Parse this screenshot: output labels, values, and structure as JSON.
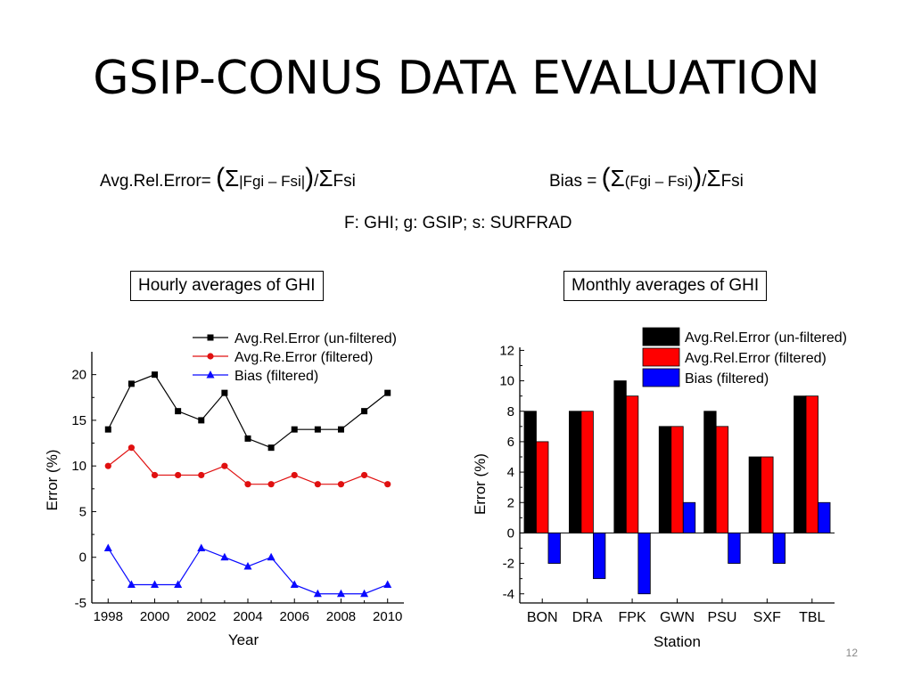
{
  "slide": {
    "title": "GSIP-CONUS DATA EVALUATION",
    "number": "12"
  },
  "formulas": {
    "avg_rel_error": {
      "prefix": "Avg.Rel.Error=",
      "open": "(",
      "sigma1": "Σ",
      "term": "|Fgi – Fsi|",
      "close": ")",
      "slash": "/",
      "sigma2": "Σ",
      "denom": "Fsi"
    },
    "bias": {
      "prefix": "Bias =",
      "open": "(",
      "sigma1": "Σ",
      "term": "(Fgi – Fsi)",
      "close": ")",
      "slash": "/",
      "sigma2": "Σ",
      "denom": "Fsi"
    },
    "legend_note": "F: GHI; g: GSIP; s: SURFRAD"
  },
  "labels": {
    "hourly": "Hourly averages of GHI",
    "monthly": "Monthly averages of GHI"
  },
  "chart_data": [
    {
      "type": "line",
      "xlabel": "Year",
      "ylabel": "Error (%)",
      "xlim": [
        1997.3,
        2010.7
      ],
      "ylim": [
        -5,
        22.5
      ],
      "xticks": [
        1998,
        2000,
        2002,
        2004,
        2006,
        2008,
        2010
      ],
      "yticks": [
        -5,
        0,
        5,
        10,
        15,
        20
      ],
      "x": [
        1998,
        1999,
        2000,
        2001,
        2002,
        2003,
        2004,
        2005,
        2006,
        2007,
        2008,
        2009,
        2010
      ],
      "legend_position": "top",
      "series": [
        {
          "name": "Avg.Rel.Error (un-filtered)",
          "color": "#000000",
          "marker": "square",
          "values": [
            14,
            19,
            20,
            16,
            15,
            18,
            13,
            12,
            14,
            14,
            14,
            16,
            18
          ]
        },
        {
          "name": "Avg.Re.Error (filtered)",
          "color": "#e01010",
          "marker": "circle",
          "values": [
            10,
            12,
            9,
            9,
            9,
            10,
            8,
            8,
            9,
            8,
            8,
            9,
            8
          ]
        },
        {
          "name": "Bias (filtered)",
          "color": "#0a0aff",
          "marker": "triangle",
          "values": [
            1,
            -3,
            -3,
            -3,
            1,
            0,
            -1,
            0,
            -3,
            -4,
            -4,
            -4,
            -3
          ]
        }
      ]
    },
    {
      "type": "bar",
      "xlabel": "Station",
      "ylabel": "Error (%)",
      "ylim": [
        -4.6,
        12.2
      ],
      "yticks": [
        -4,
        -2,
        0,
        2,
        4,
        6,
        8,
        10,
        12
      ],
      "categories": [
        "BON",
        "DRA",
        "FPK",
        "GWN",
        "PSU",
        "SXF",
        "TBL"
      ],
      "legend_position": "top",
      "series": [
        {
          "name": "Avg.Rel.Error (un-filtered)",
          "color": "#000000",
          "values": [
            8,
            8,
            10,
            7,
            8,
            5,
            9
          ]
        },
        {
          "name": "Avg.Rel.Error (filtered)",
          "color": "#ff0000",
          "values": [
            6,
            8,
            9,
            7,
            7,
            5,
            9
          ]
        },
        {
          "name": "Bias (filtered)",
          "color": "#0000ff",
          "values": [
            -2,
            -3,
            -4,
            2,
            -2,
            -2,
            2
          ]
        }
      ]
    }
  ]
}
